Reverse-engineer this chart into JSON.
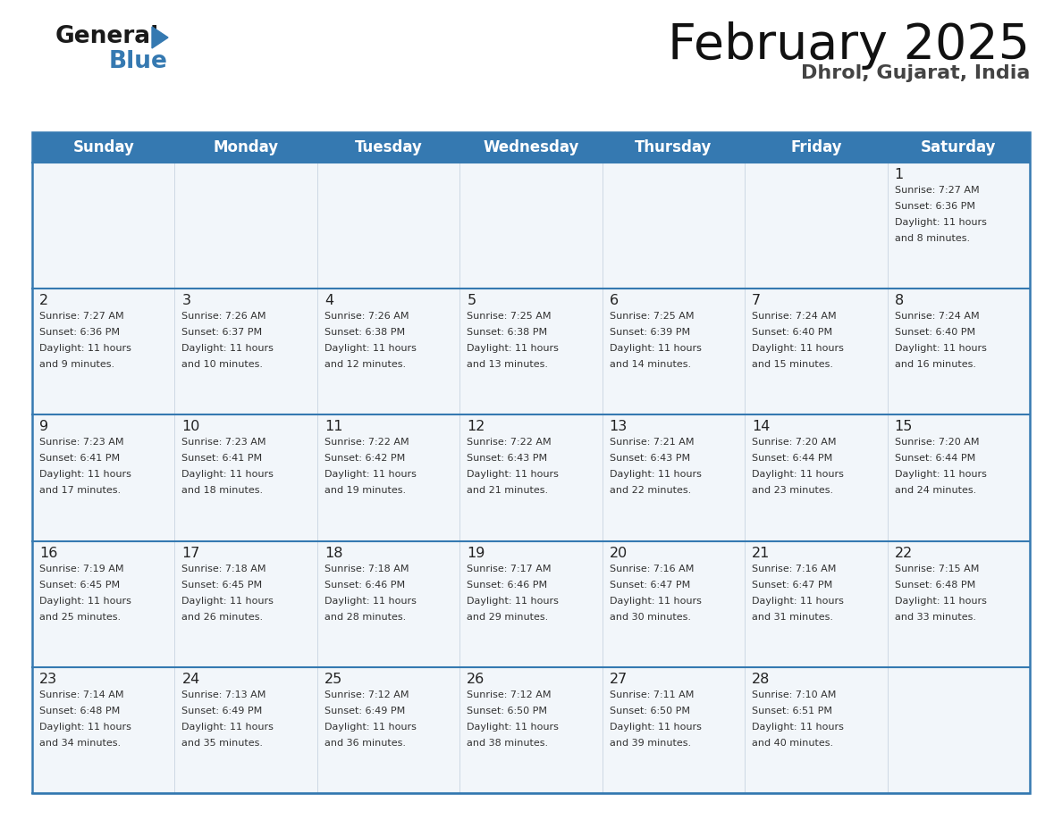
{
  "title": "February 2025",
  "subtitle": "Dhrol, Gujarat, India",
  "header_bg": "#3579b1",
  "header_text_color": "#ffffff",
  "cell_bg": "#f2f6fa",
  "separator_color": "#3579b1",
  "text_color": "#333333",
  "day_headers": [
    "Sunday",
    "Monday",
    "Tuesday",
    "Wednesday",
    "Thursday",
    "Friday",
    "Saturday"
  ],
  "weeks": [
    [
      {
        "day": null,
        "sunrise": null,
        "sunset": null,
        "daylight": null
      },
      {
        "day": null,
        "sunrise": null,
        "sunset": null,
        "daylight": null
      },
      {
        "day": null,
        "sunrise": null,
        "sunset": null,
        "daylight": null
      },
      {
        "day": null,
        "sunrise": null,
        "sunset": null,
        "daylight": null
      },
      {
        "day": null,
        "sunrise": null,
        "sunset": null,
        "daylight": null
      },
      {
        "day": null,
        "sunrise": null,
        "sunset": null,
        "daylight": null
      },
      {
        "day": 1,
        "sunrise": "7:27 AM",
        "sunset": "6:36 PM",
        "daylight": "11 hours and 8 minutes."
      }
    ],
    [
      {
        "day": 2,
        "sunrise": "7:27 AM",
        "sunset": "6:36 PM",
        "daylight": "11 hours and 9 minutes."
      },
      {
        "day": 3,
        "sunrise": "7:26 AM",
        "sunset": "6:37 PM",
        "daylight": "11 hours and 10 minutes."
      },
      {
        "day": 4,
        "sunrise": "7:26 AM",
        "sunset": "6:38 PM",
        "daylight": "11 hours and 12 minutes."
      },
      {
        "day": 5,
        "sunrise": "7:25 AM",
        "sunset": "6:38 PM",
        "daylight": "11 hours and 13 minutes."
      },
      {
        "day": 6,
        "sunrise": "7:25 AM",
        "sunset": "6:39 PM",
        "daylight": "11 hours and 14 minutes."
      },
      {
        "day": 7,
        "sunrise": "7:24 AM",
        "sunset": "6:40 PM",
        "daylight": "11 hours and 15 minutes."
      },
      {
        "day": 8,
        "sunrise": "7:24 AM",
        "sunset": "6:40 PM",
        "daylight": "11 hours and 16 minutes."
      }
    ],
    [
      {
        "day": 9,
        "sunrise": "7:23 AM",
        "sunset": "6:41 PM",
        "daylight": "11 hours and 17 minutes."
      },
      {
        "day": 10,
        "sunrise": "7:23 AM",
        "sunset": "6:41 PM",
        "daylight": "11 hours and 18 minutes."
      },
      {
        "day": 11,
        "sunrise": "7:22 AM",
        "sunset": "6:42 PM",
        "daylight": "11 hours and 19 minutes."
      },
      {
        "day": 12,
        "sunrise": "7:22 AM",
        "sunset": "6:43 PM",
        "daylight": "11 hours and 21 minutes."
      },
      {
        "day": 13,
        "sunrise": "7:21 AM",
        "sunset": "6:43 PM",
        "daylight": "11 hours and 22 minutes."
      },
      {
        "day": 14,
        "sunrise": "7:20 AM",
        "sunset": "6:44 PM",
        "daylight": "11 hours and 23 minutes."
      },
      {
        "day": 15,
        "sunrise": "7:20 AM",
        "sunset": "6:44 PM",
        "daylight": "11 hours and 24 minutes."
      }
    ],
    [
      {
        "day": 16,
        "sunrise": "7:19 AM",
        "sunset": "6:45 PM",
        "daylight": "11 hours and 25 minutes."
      },
      {
        "day": 17,
        "sunrise": "7:18 AM",
        "sunset": "6:45 PM",
        "daylight": "11 hours and 26 minutes."
      },
      {
        "day": 18,
        "sunrise": "7:18 AM",
        "sunset": "6:46 PM",
        "daylight": "11 hours and 28 minutes."
      },
      {
        "day": 19,
        "sunrise": "7:17 AM",
        "sunset": "6:46 PM",
        "daylight": "11 hours and 29 minutes."
      },
      {
        "day": 20,
        "sunrise": "7:16 AM",
        "sunset": "6:47 PM",
        "daylight": "11 hours and 30 minutes."
      },
      {
        "day": 21,
        "sunrise": "7:16 AM",
        "sunset": "6:47 PM",
        "daylight": "11 hours and 31 minutes."
      },
      {
        "day": 22,
        "sunrise": "7:15 AM",
        "sunset": "6:48 PM",
        "daylight": "11 hours and 33 minutes."
      }
    ],
    [
      {
        "day": 23,
        "sunrise": "7:14 AM",
        "sunset": "6:48 PM",
        "daylight": "11 hours and 34 minutes."
      },
      {
        "day": 24,
        "sunrise": "7:13 AM",
        "sunset": "6:49 PM",
        "daylight": "11 hours and 35 minutes."
      },
      {
        "day": 25,
        "sunrise": "7:12 AM",
        "sunset": "6:49 PM",
        "daylight": "11 hours and 36 minutes."
      },
      {
        "day": 26,
        "sunrise": "7:12 AM",
        "sunset": "6:50 PM",
        "daylight": "11 hours and 38 minutes."
      },
      {
        "day": 27,
        "sunrise": "7:11 AM",
        "sunset": "6:50 PM",
        "daylight": "11 hours and 39 minutes."
      },
      {
        "day": 28,
        "sunrise": "7:10 AM",
        "sunset": "6:51 PM",
        "daylight": "11 hours and 40 minutes."
      },
      {
        "day": null,
        "sunrise": null,
        "sunset": null,
        "daylight": null
      }
    ]
  ]
}
